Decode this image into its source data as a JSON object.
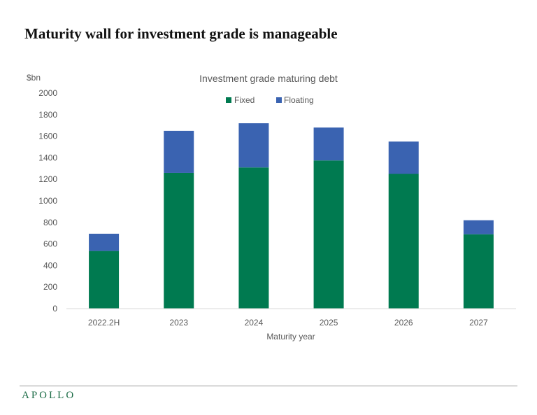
{
  "headline": "Maturity wall for investment grade is manageable",
  "footer": {
    "logo_text": "APOLLO"
  },
  "colors": {
    "fixed": "#007a50",
    "floating": "#3a63b1",
    "axis_text": "#595959",
    "logo": "#1a6b45"
  },
  "chart_data": {
    "type": "bar",
    "stacked": true,
    "title": "Investment grade maturing debt",
    "xlabel": "Maturity year",
    "ylabel": "$bn",
    "ylim": [
      0,
      2000
    ],
    "yticks": [
      0,
      200,
      400,
      600,
      800,
      1000,
      1200,
      1400,
      1600,
      1800,
      2000
    ],
    "grid": false,
    "legend_position": "top-center",
    "categories": [
      "2022.2H",
      "2023",
      "2024",
      "2025",
      "2026",
      "2027"
    ],
    "series": [
      {
        "name": "Fixed",
        "values": [
          535,
          1260,
          1310,
          1375,
          1250,
          690
        ]
      },
      {
        "name": "Floating",
        "values": [
          160,
          390,
          410,
          305,
          300,
          130
        ]
      }
    ]
  }
}
